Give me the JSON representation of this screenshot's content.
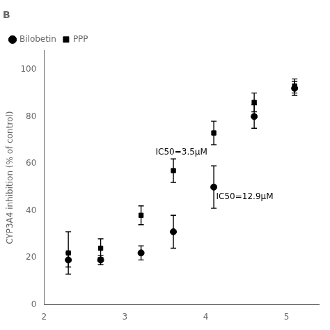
{
  "chart_data": {
    "type": "scatter",
    "title": "B",
    "y_label": "CYP3A4 inhibition (% of control)",
    "xlim": [
      2,
      5.4
    ],
    "ylim": [
      0,
      108
    ],
    "xticks": [
      2,
      3,
      4,
      5
    ],
    "yticks": [
      0,
      20,
      40,
      60,
      80,
      100
    ],
    "grid": false,
    "legend": "upper left",
    "series": [
      {
        "name": "Bilobetin",
        "color": "black",
        "marker": "circle",
        "x": [
          2.3,
          2.7,
          3.2,
          3.6,
          4.1,
          4.6,
          5.1
        ],
        "values": [
          19,
          19,
          22,
          31,
          50,
          80,
          92
        ],
        "errors": [
          3,
          2,
          3,
          7,
          9,
          5,
          3
        ]
      },
      {
        "name": "PPP",
        "color": "black",
        "marker": "square",
        "x": [
          2.3,
          2.7,
          3.2,
          3.6,
          4.1,
          4.6,
          5.1
        ],
        "values": [
          22,
          24,
          38,
          57,
          73,
          86,
          93
        ],
        "errors": [
          9,
          4,
          4,
          5,
          5,
          4,
          3
        ]
      }
    ],
    "annotations": [
      {
        "text": "IC50=12.9μM",
        "x": 4.13,
        "y": 44
      },
      {
        "text": "IC50=3.5μM",
        "x": 3.38,
        "y": 63
      }
    ]
  }
}
